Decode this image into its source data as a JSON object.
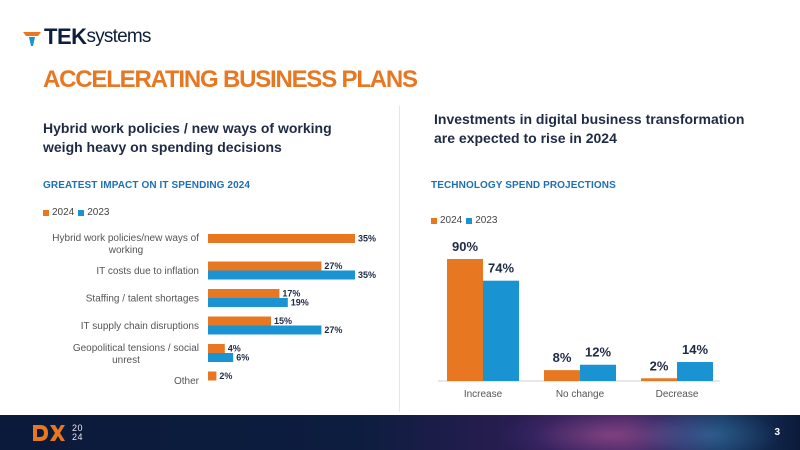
{
  "brand": {
    "logo_tek": "TEK",
    "logo_systems": "systems",
    "orange": "#e87722",
    "blue": "#1a93d2",
    "navy": "#0d1f3c"
  },
  "page": {
    "title": "ACCELERATING BUSINESS PLANS",
    "left_subhead": "Hybrid work policies / new ways of working weigh heavy on spending decisions",
    "right_subhead": "Investments in digital business transformation are expected to rise in 2024",
    "left_label": "GREATEST IMPACT ON IT SPENDING 2024",
    "right_label": "TECHNOLOGY SPEND PROJECTIONS"
  },
  "footer": {
    "year_top": "20",
    "year_bottom": "24",
    "page_number": "3"
  },
  "chart_data": [
    {
      "type": "bar",
      "orientation": "horizontal",
      "title": "GREATEST IMPACT ON IT SPENDING 2024",
      "categories": [
        "Hybrid work policies/new ways of working",
        "IT costs due to inflation",
        "Staffing / talent shortages",
        "IT supply chain disruptions",
        "Geopolitical tensions / social unrest",
        "Other"
      ],
      "series": [
        {
          "name": "2024",
          "color": "#e87722",
          "values": [
            35,
            27,
            17,
            15,
            4,
            2
          ],
          "labels": [
            "35%",
            "27%",
            "17%",
            "15%",
            "4%",
            "2%"
          ]
        },
        {
          "name": "2023",
          "color": "#1a93d2",
          "values": [
            null,
            35,
            19,
            27,
            6,
            null
          ],
          "labels": [
            "",
            "35%",
            "19%",
            "27%",
            "6%",
            ""
          ]
        }
      ],
      "xlim": [
        0,
        35
      ],
      "grid": false,
      "legend": "top-left"
    },
    {
      "type": "bar",
      "orientation": "vertical",
      "title": "TECHNOLOGY SPEND PROJECTIONS",
      "categories": [
        "Increase",
        "No change",
        "Decrease"
      ],
      "series": [
        {
          "name": "2024",
          "color": "#e87722",
          "values": [
            90,
            8,
            2
          ],
          "labels": [
            "90%",
            "8%",
            "2%"
          ]
        },
        {
          "name": "2023",
          "color": "#1a93d2",
          "values": [
            74,
            12,
            14
          ],
          "labels": [
            "74%",
            "12%",
            "14%"
          ]
        }
      ],
      "ylim": [
        0,
        90
      ],
      "grid": false,
      "legend": "top-left"
    }
  ]
}
